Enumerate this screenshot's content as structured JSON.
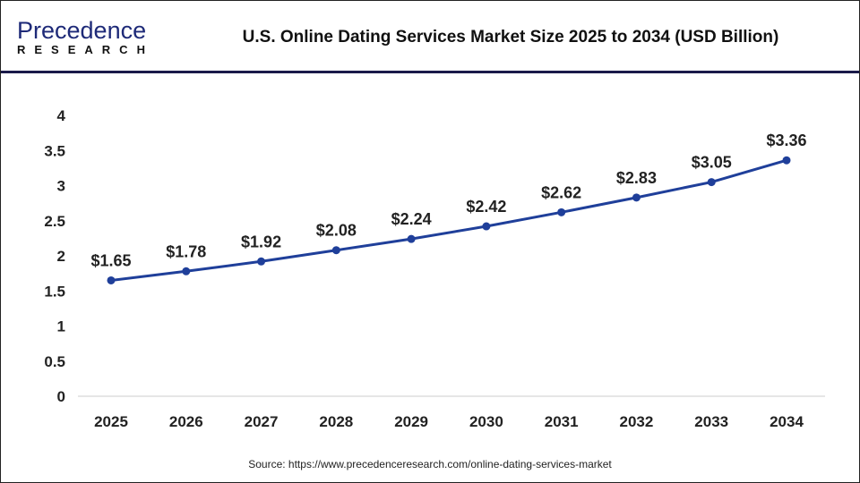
{
  "logo": {
    "line1": "Precedence",
    "line2": "RESEARCH"
  },
  "title": "U.S. Online Dating Services Market Size 2025 to 2034 (USD Billion)",
  "source": "Source: https://www.precedenceresearch.com/online-dating-services-market",
  "colors": {
    "line": "#1f3f9a",
    "marker": "#1f3f9a"
  },
  "chart_data": {
    "type": "line",
    "title": "U.S. Online Dating Services Market Size 2025 to 2034 (USD Billion)",
    "categories": [
      "2025",
      "2026",
      "2027",
      "2028",
      "2029",
      "2030",
      "2031",
      "2032",
      "2033",
      "2034"
    ],
    "values": [
      1.65,
      1.78,
      1.92,
      2.08,
      2.24,
      2.42,
      2.62,
      2.83,
      3.05,
      3.36
    ],
    "data_labels": [
      "$1.65",
      "$1.78",
      "$1.92",
      "$2.08",
      "$2.24",
      "$2.42",
      "$2.62",
      "$2.83",
      "$3.05",
      "$3.36"
    ],
    "yticks": [
      "0",
      "0.5",
      "1",
      "1.5",
      "2",
      "2.5",
      "3",
      "3.5",
      "4"
    ],
    "ylim": [
      0,
      4
    ],
    "xlabel": "",
    "ylabel": "",
    "grid": false
  }
}
